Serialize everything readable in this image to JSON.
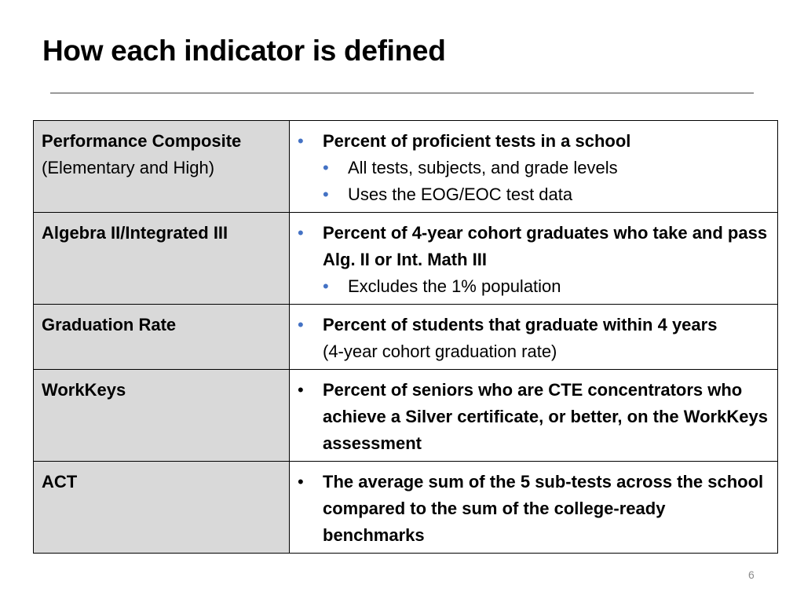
{
  "slide": {
    "title": "How each indicator is defined",
    "page_number": "6"
  },
  "rows": [
    {
      "name": "Performance Composite",
      "name_sub": "(Elementary and High)",
      "bullet_color": "#4472c4",
      "bullet": "Percent of proficient tests in a school",
      "bullet_cont": "",
      "sub_bullets": [
        "All tests, subjects, and grade levels",
        "Uses the EOG/EOC test data"
      ]
    },
    {
      "name": "Algebra II/Integrated III",
      "name_sub": "",
      "bullet_color": "#4472c4",
      "bullet": "Percent of 4-year cohort graduates who take and pass Alg. II or Int. Math III",
      "bullet_cont": "",
      "sub_bullets": [
        "Excludes the 1% population"
      ]
    },
    {
      "name": "Graduation Rate",
      "name_sub": "",
      "bullet_color": "#4472c4",
      "bullet": "Percent of students that graduate within 4 years",
      "bullet_cont": "(4-year cohort graduation rate)",
      "sub_bullets": []
    },
    {
      "name": "WorkKeys",
      "name_sub": "",
      "bullet_color": "#000000",
      "bullet": "Percent of seniors who are CTE concentrators who achieve a Silver certificate, or better, on the WorkKeys assessment",
      "bullet_cont": "",
      "sub_bullets": []
    },
    {
      "name": "ACT",
      "name_sub": "",
      "bullet_color": "#000000",
      "bullet": "The average sum of the 5 sub-tests across the school compared to the sum of the college-ready benchmarks",
      "bullet_cont": "",
      "sub_bullets": []
    }
  ],
  "colors": {
    "name_cell_bg": "#d9d9d9",
    "bullet_blue": "#4472c4",
    "rule": "#404040"
  }
}
